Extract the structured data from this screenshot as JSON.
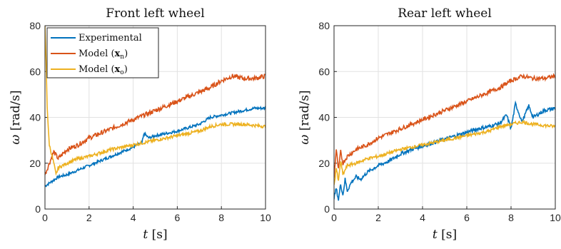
{
  "chart_data": [
    {
      "type": "line",
      "title": "Front left wheel",
      "xlabel_var": "t",
      "xlabel_unit": "[s]",
      "ylabel_var": "ω",
      "ylabel_unit": "[rad/s]",
      "xlim": [
        0,
        10
      ],
      "ylim": [
        0,
        80
      ],
      "xticks": [
        "0",
        "2",
        "4",
        "6",
        "8",
        "10"
      ],
      "yticks": [
        "0",
        "20",
        "40",
        "60",
        "80"
      ],
      "grid": true,
      "legend_position": "top-left",
      "series": [
        {
          "name": "Experimental",
          "color": "#0072BD",
          "x": [
            0,
            0.3,
            0.6,
            1,
            1.5,
            2,
            2.5,
            3,
            3.5,
            4,
            4.4,
            4.5,
            4.7,
            5,
            5.5,
            6,
            6.5,
            7,
            7.5,
            8,
            8.5,
            9,
            9.5,
            10
          ],
          "y": [
            10,
            12,
            14,
            15,
            17,
            19,
            21,
            23,
            25,
            27,
            29,
            33,
            31,
            32,
            33,
            34,
            35.5,
            37,
            40,
            41,
            42,
            43,
            44,
            44
          ]
        },
        {
          "name": "Model (xn)",
          "label_main": "Model",
          "label_vec": "x",
          "label_sub": "n",
          "color": "#D95319",
          "x": [
            0,
            0.2,
            0.4,
            0.6,
            1,
            1.5,
            2,
            2.5,
            3,
            3.5,
            4,
            4.5,
            5,
            5.5,
            6,
            6.5,
            7,
            7.5,
            8,
            8.5,
            9,
            9.5,
            10
          ],
          "y": [
            15,
            20,
            25,
            22,
            26,
            28,
            31,
            33,
            35,
            37,
            39,
            41,
            43,
            45,
            47,
            49,
            51,
            53,
            56,
            58,
            57,
            57,
            58
          ]
        },
        {
          "name": "Model (xo)",
          "label_main": "Model",
          "label_vec": "x",
          "label_sub": "o",
          "color": "#EDB120",
          "x": [
            0,
            0.05,
            0.1,
            0.15,
            0.2,
            0.3,
            0.4,
            0.5,
            0.6,
            1,
            1.5,
            2,
            2.5,
            3,
            3.5,
            4,
            4.5,
            5,
            5.5,
            6,
            6.5,
            7,
            7.5,
            8,
            8.5,
            9,
            9.5,
            10
          ],
          "y": [
            80,
            65,
            45,
            35,
            28,
            24,
            20,
            15,
            18,
            20,
            22,
            23,
            24.5,
            26,
            27,
            28,
            29,
            30,
            31,
            32,
            33,
            34,
            36,
            37,
            37,
            37,
            36.5,
            36
          ]
        }
      ]
    },
    {
      "type": "line",
      "title": "Rear left wheel",
      "xlabel_var": "t",
      "xlabel_unit": "[s]",
      "ylabel_var": "ω",
      "ylabel_unit": "[rad/s]",
      "xlim": [
        0,
        10
      ],
      "ylim": [
        0,
        80
      ],
      "xticks": [
        "0",
        "2",
        "4",
        "6",
        "8",
        "10"
      ],
      "yticks": [
        "0",
        "20",
        "40",
        "60",
        "80"
      ],
      "grid": true,
      "series": [
        {
          "name": "Experimental",
          "color": "#0072BD",
          "x": [
            0,
            0.1,
            0.2,
            0.3,
            0.4,
            0.5,
            0.6,
            0.8,
            1,
            1.2,
            1.5,
            2,
            2.5,
            3,
            3.5,
            4,
            4.5,
            5,
            5.5,
            6,
            6.5,
            7,
            7.5,
            7.8,
            8,
            8.2,
            8.5,
            8.8,
            9,
            9.5,
            10
          ],
          "y": [
            5,
            9,
            4,
            11,
            6,
            13,
            8,
            12,
            14,
            13,
            16,
            19,
            21,
            24,
            26,
            27.5,
            29,
            30.5,
            32,
            33.5,
            35,
            36,
            37.5,
            41,
            35,
            46,
            38,
            45,
            40,
            43,
            44
          ]
        },
        {
          "name": "Model (xn)",
          "color": "#D95319",
          "x": [
            0,
            0.1,
            0.2,
            0.3,
            0.4,
            0.6,
            1,
            1.5,
            2,
            2.5,
            3,
            3.5,
            4,
            4.5,
            5,
            5.5,
            6,
            6.5,
            7,
            7.5,
            8,
            8.5,
            9,
            9.5,
            10
          ],
          "y": [
            14,
            26,
            17,
            25,
            20,
            23,
            26,
            28,
            31,
            33,
            35,
            37,
            39,
            41,
            43,
            45,
            47,
            49,
            51,
            53,
            56,
            58,
            57,
            57,
            58
          ]
        },
        {
          "name": "Model (xo)",
          "color": "#EDB120",
          "x": [
            0,
            0.1,
            0.2,
            0.3,
            0.4,
            0.6,
            1,
            1.5,
            2,
            2.5,
            3,
            3.5,
            4,
            4.5,
            5,
            5.5,
            6,
            6.5,
            7,
            7.5,
            8,
            8.5,
            9,
            9.5,
            10
          ],
          "y": [
            10,
            18,
            12,
            21,
            15,
            19,
            20,
            22,
            23,
            24.5,
            26,
            27,
            28,
            29,
            30,
            31,
            32,
            33,
            34,
            36,
            37,
            38,
            37,
            36.5,
            36
          ]
        }
      ]
    }
  ]
}
